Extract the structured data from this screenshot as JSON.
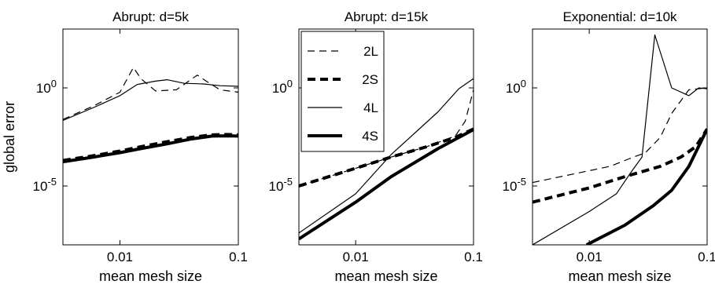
{
  "chart_data": [
    {
      "type": "line",
      "title": "Abrupt: d=5k",
      "xlabel": "mean mesh size",
      "ylabel": "global error",
      "xscale": "log",
      "yscale": "log",
      "xlim": [
        0.0033,
        0.1
      ],
      "ylim": [
        1e-08,
        1000
      ],
      "xticks": [
        {
          "value": 0.01,
          "label": "0.01"
        },
        {
          "value": 0.1,
          "label": "0.1"
        }
      ],
      "yticks": [
        {
          "value": 1,
          "label": "10^0"
        },
        {
          "value": 1e-05,
          "label": "10^-5"
        }
      ],
      "series": [
        {
          "name": "2L",
          "style": "thin-dashed",
          "x": [
            0.0033,
            0.006,
            0.01,
            0.013,
            0.015,
            0.02,
            0.03,
            0.045,
            0.055,
            0.07,
            0.1
          ],
          "y": [
            0.025,
            0.12,
            0.6,
            11,
            3.0,
            0.7,
            0.8,
            4.5,
            2.0,
            0.8,
            0.6
          ]
        },
        {
          "name": "2S",
          "style": "thick-dashed",
          "x": [
            0.0033,
            0.006,
            0.01,
            0.015,
            0.025,
            0.04,
            0.06,
            0.08,
            0.1
          ],
          "y": [
            0.0002,
            0.00035,
            0.0006,
            0.001,
            0.0018,
            0.003,
            0.004,
            0.0042,
            0.004
          ]
        },
        {
          "name": "4L",
          "style": "thin-solid",
          "x": [
            0.0033,
            0.006,
            0.01,
            0.014,
            0.02,
            0.025,
            0.035,
            0.05,
            0.07,
            0.1
          ],
          "y": [
            0.022,
            0.1,
            0.4,
            1.5,
            2.2,
            2.6,
            1.7,
            1.6,
            1.3,
            1.2
          ]
        },
        {
          "name": "4S",
          "style": "thick-solid",
          "x": [
            0.0033,
            0.006,
            0.01,
            0.015,
            0.025,
            0.04,
            0.06,
            0.08,
            0.1
          ],
          "y": [
            0.00017,
            0.0003,
            0.0005,
            0.0008,
            0.0014,
            0.0025,
            0.0035,
            0.0036,
            0.0035
          ]
        }
      ]
    },
    {
      "type": "line",
      "title": "Abrupt: d=15k",
      "xlabel": "mean mesh size",
      "ylabel": "",
      "xscale": "log",
      "yscale": "log",
      "xlim": [
        0.0033,
        0.1
      ],
      "ylim": [
        1e-08,
        1000
      ],
      "xticks": [
        {
          "value": 0.01,
          "label": "0.01"
        },
        {
          "value": 0.1,
          "label": "0.1"
        }
      ],
      "yticks": [
        {
          "value": 1,
          "label": "10^0"
        },
        {
          "value": 1e-05,
          "label": "10^-5"
        }
      ],
      "legend": {
        "placement": "top-left"
      },
      "series": [
        {
          "name": "2L",
          "style": "thin-dashed",
          "x": [
            0.0033,
            0.01,
            0.02,
            0.04,
            0.07,
            0.085,
            0.1
          ],
          "y": [
            1e-05,
            8e-05,
            0.0003,
            0.001,
            0.0035,
            0.02,
            0.8
          ]
        },
        {
          "name": "2S",
          "style": "thick-dashed",
          "x": [
            0.0033,
            0.01,
            0.02,
            0.04,
            0.07,
            0.1
          ],
          "y": [
            1e-05,
            8e-05,
            0.0003,
            0.001,
            0.003,
            0.008
          ]
        },
        {
          "name": "4L",
          "style": "thin-solid",
          "x": [
            0.0033,
            0.01,
            0.02,
            0.05,
            0.075,
            0.1
          ],
          "y": [
            4e-08,
            4e-06,
            0.0004,
            0.06,
            0.9,
            3.0
          ]
        },
        {
          "name": "4S",
          "style": "thick-solid",
          "x": [
            0.0033,
            0.01,
            0.02,
            0.05,
            0.1
          ],
          "y": [
            2e-08,
            1.5e-06,
            3e-05,
            0.0008,
            0.0075
          ]
        }
      ]
    },
    {
      "type": "line",
      "title": "Exponential: d=10k",
      "xlabel": "mean mesh size",
      "ylabel": "",
      "xscale": "log",
      "yscale": "log",
      "xlim": [
        0.0033,
        0.1
      ],
      "ylim": [
        1e-08,
        1000
      ],
      "xticks": [
        {
          "value": 0.01,
          "label": "0.01"
        },
        {
          "value": 0.1,
          "label": "0.1"
        }
      ],
      "yticks": [
        {
          "value": 1,
          "label": "10^0"
        },
        {
          "value": 1e-05,
          "label": "10^-5"
        }
      ],
      "series": [
        {
          "name": "2L",
          "style": "thin-dashed",
          "x": [
            0.0033,
            0.01,
            0.015,
            0.02,
            0.03,
            0.04,
            0.05,
            0.07,
            0.1
          ],
          "y": [
            1.5e-05,
            6e-05,
            0.0001,
            0.0002,
            0.0005,
            0.003,
            0.05,
            0.8,
            1.0
          ]
        },
        {
          "name": "2S",
          "style": "thick-dashed",
          "x": [
            0.0033,
            0.01,
            0.02,
            0.04,
            0.06,
            0.08,
            0.1
          ],
          "y": [
            1.5e-06,
            8e-06,
            3e-05,
            0.0001,
            0.0003,
            0.001,
            0.008
          ]
        },
        {
          "name": "4L",
          "style": "thin-solid",
          "x": [
            0.0033,
            0.01,
            0.017,
            0.022,
            0.028,
            0.036,
            0.05,
            0.07,
            0.085,
            0.1
          ],
          "y": [
            1e-08,
            5e-07,
            4e-06,
            4e-05,
            0.0003,
            500,
            1.0,
            0.4,
            1.0,
            0.9
          ]
        },
        {
          "name": "4S",
          "style": "thick-solid",
          "x": [
            0.0095,
            0.02,
            0.035,
            0.05,
            0.07,
            0.1
          ],
          "y": [
            1e-08,
            1e-07,
            1e-06,
            6e-06,
            0.0001,
            0.008
          ]
        }
      ]
    }
  ]
}
